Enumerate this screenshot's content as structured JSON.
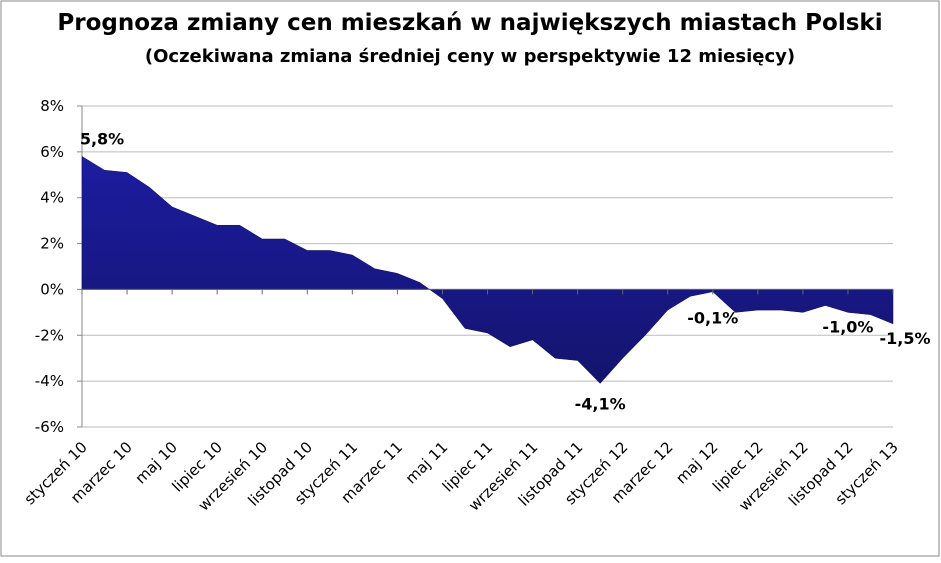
{
  "chart_data": {
    "type": "area",
    "title": "Prognoza zmiany cen mieszkań w największych miastach Polski",
    "subtitle": "(Oczekiwana zmiana średniej ceny w perspektywie 12 miesięcy)",
    "categories": [
      "styczeń 10",
      null,
      "marzec 10",
      null,
      "maj 10",
      null,
      "lipiec 10",
      null,
      "wrzesień 10",
      null,
      "listopad 10",
      null,
      "styczeń 11",
      null,
      "marzec 11",
      null,
      "maj 11",
      null,
      "lipiec 11",
      null,
      "wrzesień 11",
      null,
      "listopad 11",
      null,
      "styczeń 12",
      null,
      "marzec 12",
      null,
      "maj 12",
      null,
      "lipiec 12",
      null,
      "wrzesień 12",
      null,
      "listopad 12",
      null,
      "styczeń 13"
    ],
    "series": [
      {
        "color": "#1c1ca0",
        "values": [
          5.8,
          5.2,
          5.1,
          4.45,
          3.6,
          3.2,
          2.8,
          2.8,
          2.2,
          2.2,
          1.7,
          1.7,
          1.5,
          0.9,
          0.7,
          0.3,
          -0.4,
          -1.7,
          -1.9,
          -2.5,
          -2.2,
          -3.0,
          -3.1,
          -4.1,
          -3.0,
          -2.0,
          -0.9,
          -0.3,
          -0.1,
          -1.0,
          -0.9,
          -0.9,
          -1.0,
          -0.7,
          -1.0,
          -1.1,
          -1.5
        ],
        "value_labels": [
          "5,8%",
          null,
          null,
          null,
          null,
          null,
          null,
          null,
          null,
          null,
          null,
          null,
          null,
          null,
          null,
          null,
          null,
          null,
          null,
          null,
          null,
          null,
          null,
          "-4,1%",
          null,
          null,
          null,
          null,
          "-0,1%",
          null,
          null,
          null,
          null,
          null,
          "-1,0%",
          null,
          "-1,5%"
        ]
      }
    ],
    "ylim": [
      -6,
      8
    ],
    "yticks": [
      {
        "value": -6,
        "label": "-6%"
      },
      {
        "value": -4,
        "label": "-4%"
      },
      {
        "value": -2,
        "label": "-2%"
      },
      {
        "value": 0,
        "label": "0%"
      },
      {
        "value": 2,
        "label": "2%"
      },
      {
        "value": 4,
        "label": "4%"
      },
      {
        "value": 6,
        "label": "6%"
      },
      {
        "value": 8,
        "label": "8%"
      }
    ],
    "grid": true
  }
}
